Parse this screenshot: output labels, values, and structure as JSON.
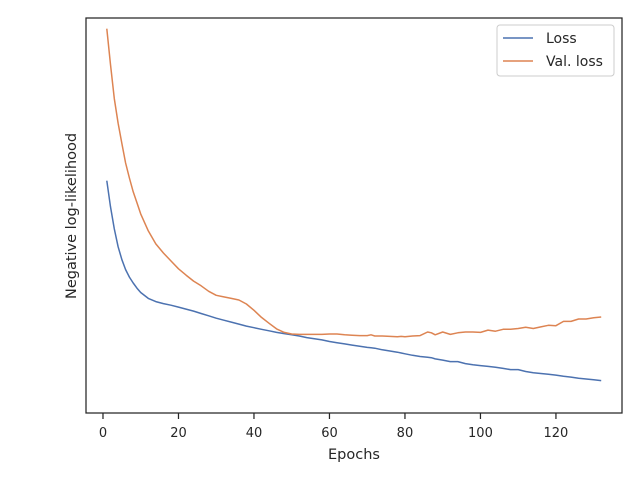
{
  "chart_data": {
    "type": "line",
    "title": "",
    "xlabel": "Epochs",
    "ylabel": "Negative log-likelihood",
    "xlim": [
      -4.5,
      137.5
    ],
    "ylim": [
      0,
      1
    ],
    "xticks": [
      0,
      20,
      40,
      60,
      80,
      100,
      120
    ],
    "yticks_shown": false,
    "grid": false,
    "legend_position": "top-right",
    "x": [
      1,
      2,
      3,
      4,
      5,
      6,
      7,
      8,
      9,
      10,
      12,
      14,
      16,
      18,
      20,
      22,
      24,
      26,
      28,
      30,
      32,
      34,
      36,
      38,
      40,
      42,
      44,
      46,
      48,
      50,
      52,
      54,
      56,
      58,
      60,
      62,
      64,
      66,
      68,
      70,
      71,
      72,
      74,
      76,
      78,
      79,
      80,
      82,
      84,
      86,
      87,
      88,
      90,
      92,
      94,
      96,
      98,
      100,
      102,
      104,
      106,
      108,
      110,
      112,
      114,
      116,
      118,
      120,
      122,
      124,
      126,
      128,
      130,
      132
    ],
    "series": [
      {
        "name": "Loss",
        "color": "#4c72b0",
        "values": [
          0.588,
          0.522,
          0.466,
          0.421,
          0.388,
          0.363,
          0.344,
          0.329,
          0.316,
          0.305,
          0.29,
          0.282,
          0.277,
          0.273,
          0.268,
          0.263,
          0.258,
          0.252,
          0.246,
          0.24,
          0.235,
          0.23,
          0.225,
          0.22,
          0.216,
          0.212,
          0.208,
          0.204,
          0.201,
          0.198,
          0.195,
          0.191,
          0.188,
          0.185,
          0.181,
          0.178,
          0.175,
          0.172,
          0.169,
          0.166,
          0.165,
          0.164,
          0.16,
          0.157,
          0.154,
          0.152,
          0.15,
          0.146,
          0.143,
          0.141,
          0.14,
          0.137,
          0.134,
          0.13,
          0.13,
          0.125,
          0.122,
          0.12,
          0.118,
          0.116,
          0.113,
          0.11,
          0.11,
          0.105,
          0.102,
          0.1,
          0.098,
          0.096,
          0.093,
          0.091,
          0.088,
          0.086,
          0.084,
          0.082
        ]
      },
      {
        "name": "Val. loss",
        "color": "#dd8452",
        "values": [
          0.973,
          0.882,
          0.796,
          0.734,
          0.682,
          0.633,
          0.595,
          0.56,
          0.532,
          0.504,
          0.461,
          0.428,
          0.405,
          0.385,
          0.365,
          0.349,
          0.334,
          0.322,
          0.308,
          0.298,
          0.294,
          0.29,
          0.286,
          0.276,
          0.26,
          0.242,
          0.227,
          0.213,
          0.204,
          0.2,
          0.199,
          0.199,
          0.199,
          0.199,
          0.2,
          0.2,
          0.198,
          0.197,
          0.196,
          0.196,
          0.198,
          0.195,
          0.195,
          0.194,
          0.193,
          0.194,
          0.193,
          0.195,
          0.196,
          0.205,
          0.203,
          0.198,
          0.205,
          0.199,
          0.203,
          0.205,
          0.205,
          0.204,
          0.21,
          0.207,
          0.212,
          0.212,
          0.214,
          0.217,
          0.214,
          0.218,
          0.222,
          0.221,
          0.232,
          0.232,
          0.238,
          0.238,
          0.241,
          0.243
        ]
      }
    ]
  }
}
